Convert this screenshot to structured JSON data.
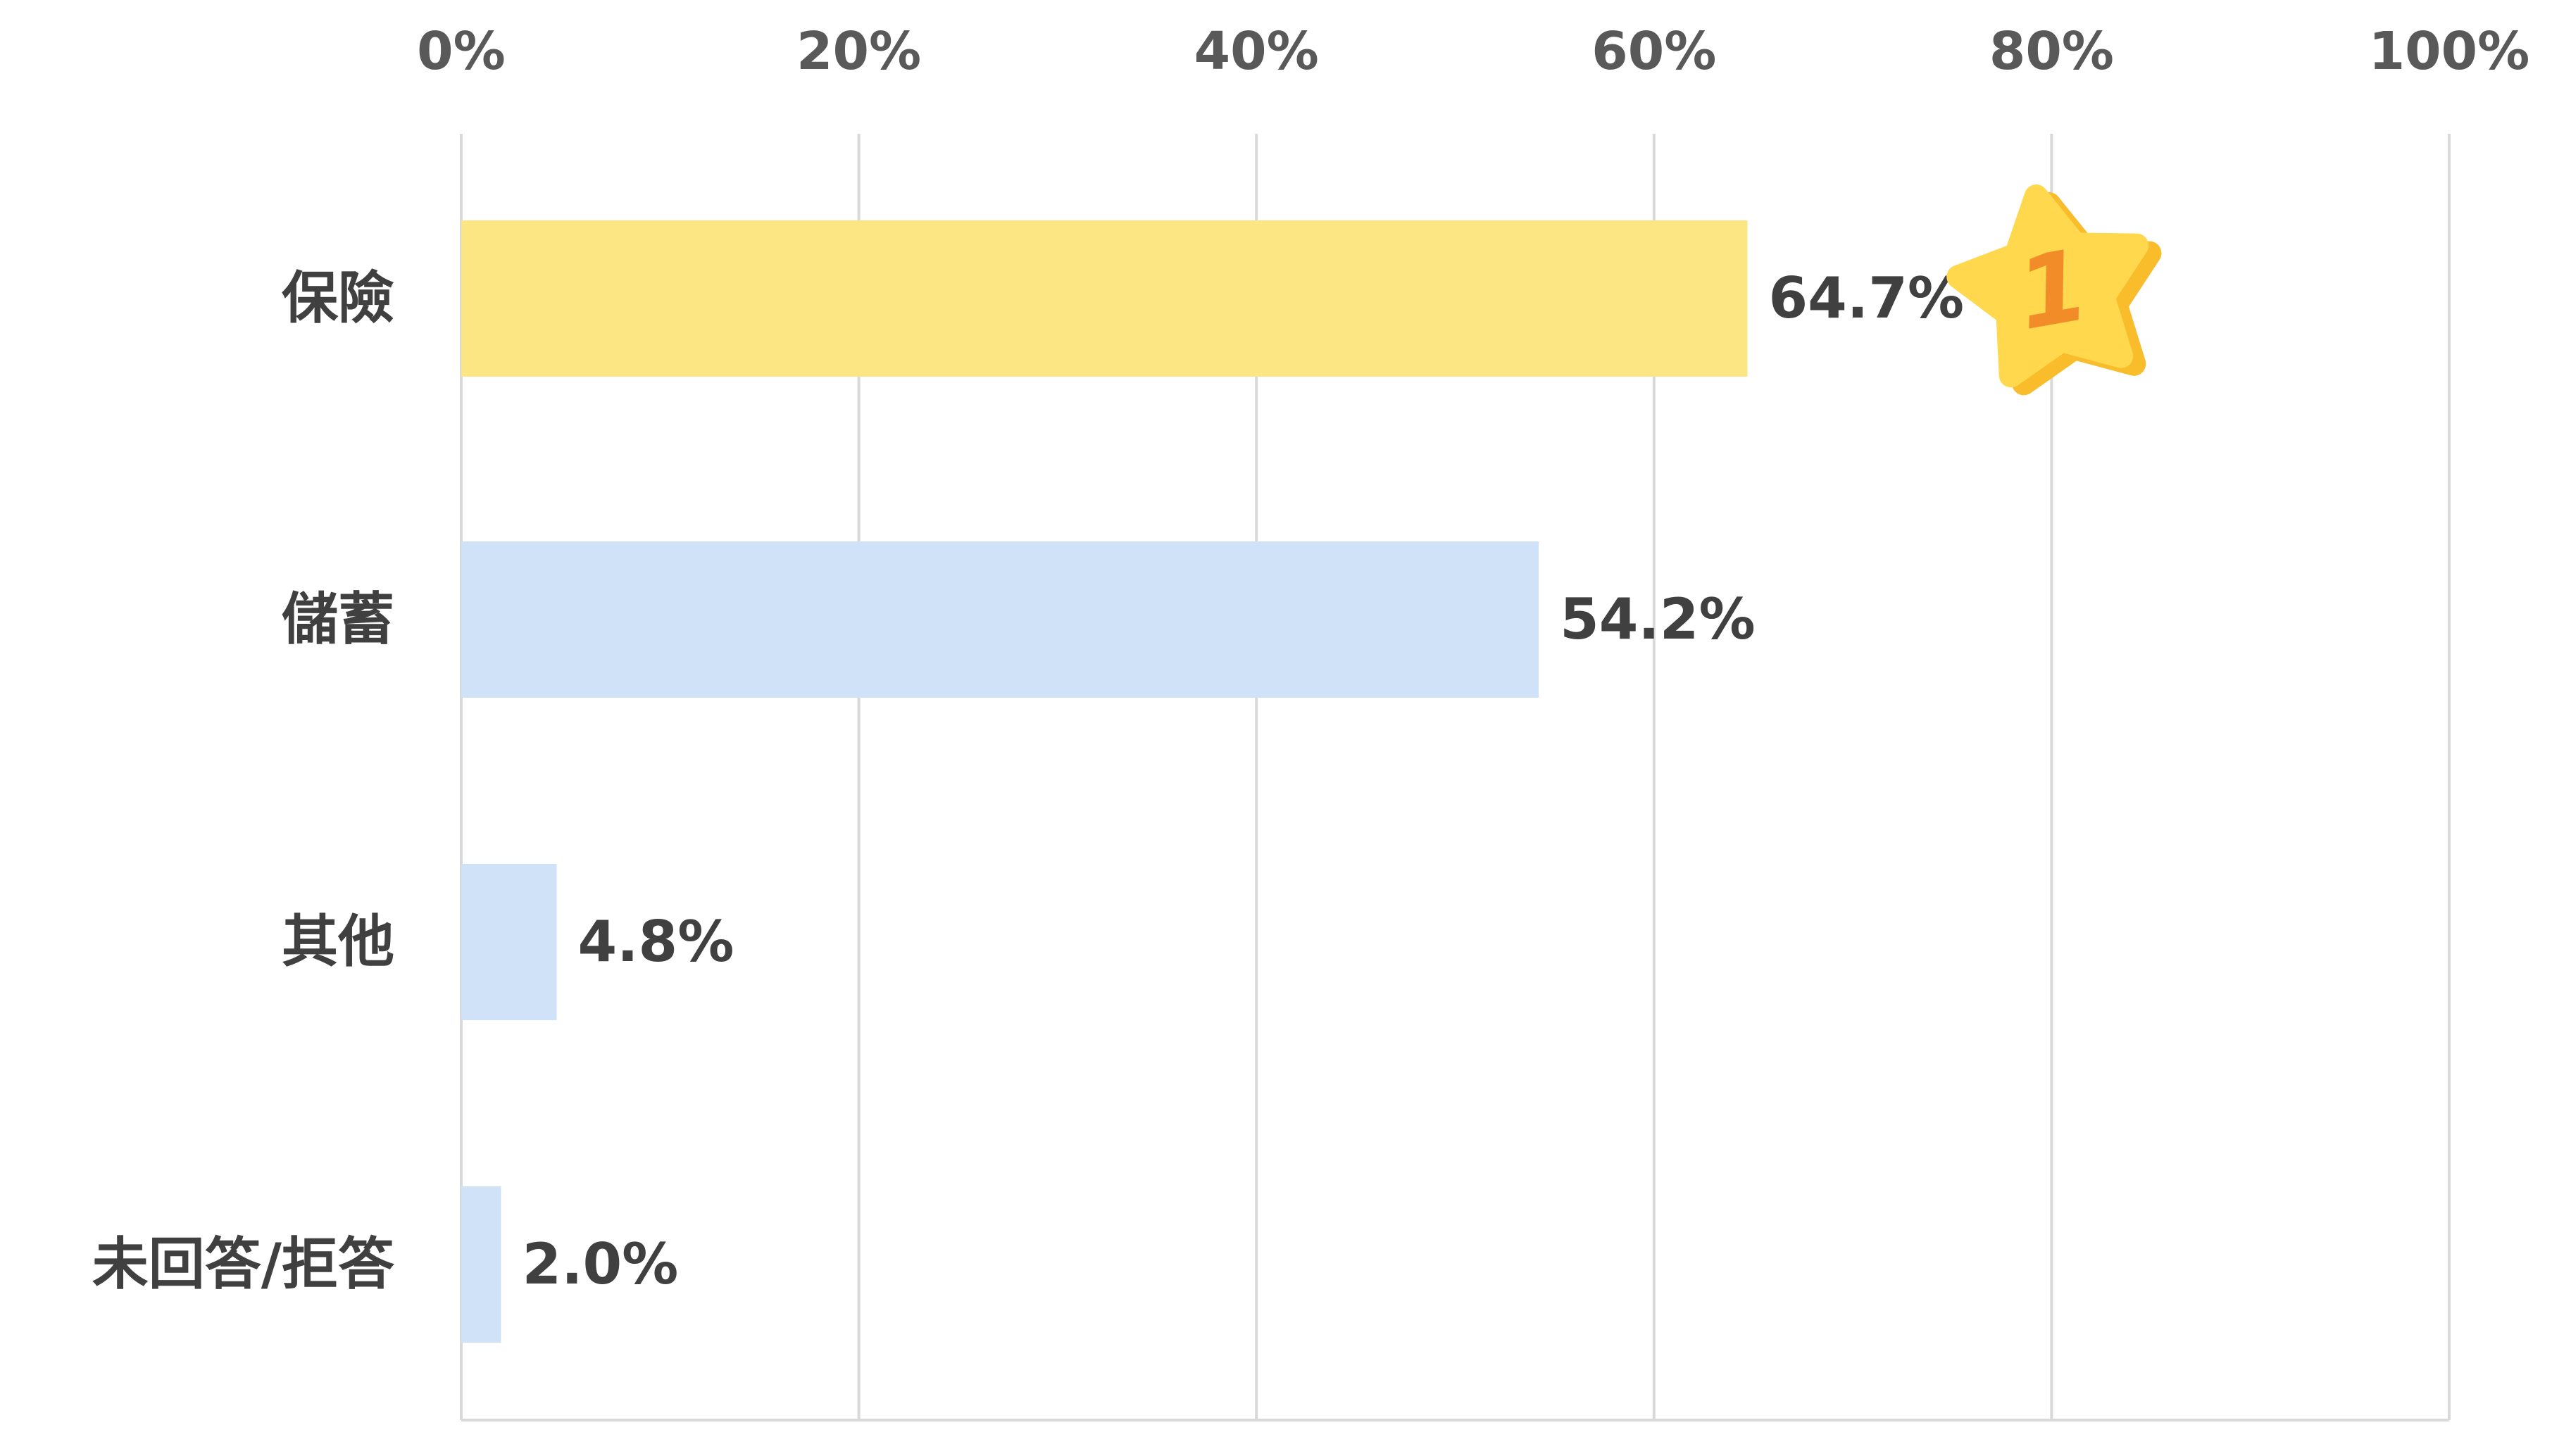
{
  "chart_data": {
    "type": "bar",
    "orientation": "horizontal",
    "categories": [
      "保險",
      "儲蓄",
      "其他",
      "未回答/拒答"
    ],
    "values": [
      64.7,
      54.2,
      4.8,
      2.0
    ],
    "value_labels": [
      "64.7%",
      "54.2%",
      "4.8%",
      "2.0%"
    ],
    "xlim": [
      0,
      100
    ],
    "x_ticks": [
      0,
      20,
      40,
      60,
      80,
      100
    ],
    "x_tick_labels": [
      "0%",
      "20%",
      "40%",
      "60%",
      "80%",
      "100%"
    ],
    "x_axis_position": "top",
    "grid": true,
    "title": "",
    "xlabel": "",
    "ylabel": "",
    "highlight": {
      "category_index": 0,
      "badge_text": "1",
      "badge_icon": "star-icon"
    },
    "colors": {
      "highlight_bar": "#FCE583",
      "bar": "#CFE2F8",
      "grid": "#D9D9D9",
      "tick_text": "#595959",
      "category_text": "#404040",
      "value_text": "#404040",
      "star_fill": "#FFD84D",
      "star_shadow": "#F9BC2B",
      "badge_number": "#F28C28"
    }
  }
}
